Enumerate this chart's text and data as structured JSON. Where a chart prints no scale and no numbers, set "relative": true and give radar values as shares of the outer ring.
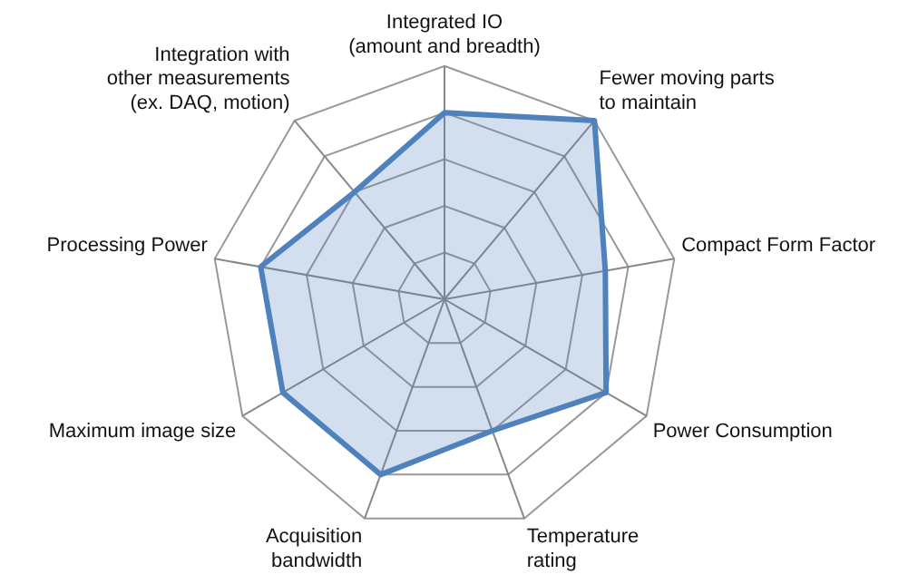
{
  "chart_data": {
    "type": "radar",
    "relative": true,
    "categories": [
      "Integrated IO\n(amount and breadth)",
      "Fewer moving parts\nto maintain",
      "Compact Form Factor",
      "Power Consumption",
      "Temperature\nrating",
      "Acquisition\nbandwidth",
      "Maximum image size",
      "Processing Power",
      "Integration with\nother measurements\n(ex. DAQ, motion)"
    ],
    "series": [
      {
        "color": "#4f81bd",
        "values": [
          0.8,
          1.0,
          0.7,
          0.8,
          0.6,
          0.8,
          0.8,
          0.8,
          0.6
        ]
      }
    ],
    "legend": false
  }
}
